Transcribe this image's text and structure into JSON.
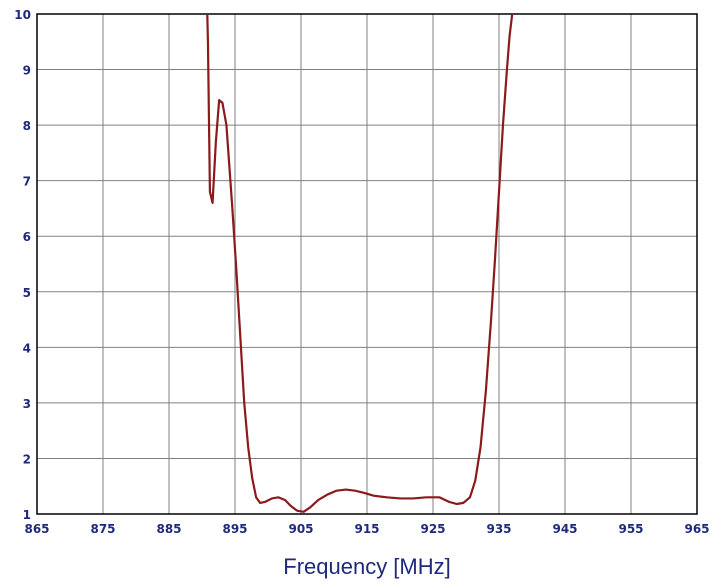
{
  "chart_data": {
    "type": "line",
    "title": "",
    "xlabel": "Frequency [MHz]",
    "ylabel": "",
    "xlim": [
      865,
      965
    ],
    "ylim": [
      1,
      10
    ],
    "x_ticks": [
      865,
      875,
      885,
      895,
      905,
      915,
      925,
      935,
      945,
      955,
      965
    ],
    "y_ticks": [
      1,
      2,
      3,
      4,
      5,
      6,
      7,
      8,
      9,
      10
    ],
    "grid": true,
    "legend": "none",
    "colors": {
      "series": "#8b1a1a",
      "grid": "#808080",
      "axis": "#000000",
      "tick_label": "#1f2a7a",
      "axis_title": "#1f2a7a",
      "background": "#ffffff"
    },
    "series": [
      {
        "x": [
          890.8,
          890.9,
          891.2,
          891.6,
          892.1,
          892.6,
          893.1,
          893.7,
          894.6,
          895.2,
          895.8,
          896.4,
          897.0,
          897.6,
          898.2,
          898.8,
          899.6,
          900.6,
          901.6,
          902.6,
          903.4,
          904.4,
          905.4,
          906.4,
          907.6,
          909.0,
          910.4,
          911.8,
          913.2,
          914.6,
          916.0,
          918.0,
          920.0,
          922.0,
          924.0,
          926.0,
          927.4,
          928.6,
          929.6,
          930.6,
          931.4,
          932.2,
          933.0,
          933.8,
          934.4,
          935.0,
          935.6,
          936.2,
          936.6,
          937.0
        ],
        "y": [
          10.0,
          9.5,
          6.8,
          6.6,
          7.7,
          8.45,
          8.4,
          8.0,
          6.5,
          5.4,
          4.2,
          3.0,
          2.2,
          1.65,
          1.3,
          1.2,
          1.22,
          1.28,
          1.3,
          1.25,
          1.15,
          1.06,
          1.04,
          1.12,
          1.25,
          1.35,
          1.42,
          1.44,
          1.42,
          1.38,
          1.33,
          1.3,
          1.28,
          1.28,
          1.3,
          1.3,
          1.22,
          1.18,
          1.2,
          1.3,
          1.6,
          2.2,
          3.2,
          4.5,
          5.6,
          6.8,
          8.0,
          9.0,
          9.6,
          10.0
        ]
      }
    ]
  }
}
